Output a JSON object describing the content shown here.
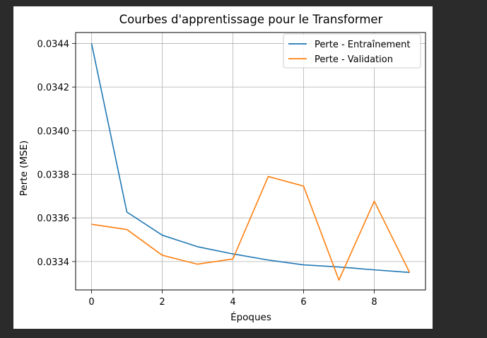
{
  "chart_data": {
    "type": "line",
    "title": "Courbes d'apprentissage pour le Transformer",
    "xlabel": "Époques",
    "ylabel": "Perte (MSE)",
    "x": [
      0,
      1,
      2,
      3,
      4,
      5,
      6,
      7,
      8,
      9
    ],
    "xlim": [
      -0.45,
      9.45
    ],
    "ylim": [
      0.03327,
      0.03445
    ],
    "xticks": [
      0,
      2,
      4,
      6,
      8
    ],
    "yticks": [
      0.0334,
      0.0336,
      0.0338,
      0.034,
      0.0342,
      0.0344
    ],
    "ytick_labels": [
      "0.0334",
      "0.0336",
      "0.0338",
      "0.0340",
      "0.0342",
      "0.0344"
    ],
    "grid": true,
    "legend_position": "top-right",
    "series": [
      {
        "name": "Perte - Entraînement",
        "color": "#1f77b4",
        "values": [
          0.0344,
          0.033627,
          0.033521,
          0.033468,
          0.033435,
          0.033407,
          0.033385,
          0.033375,
          0.033362,
          0.03335
        ]
      },
      {
        "name": "Perte - Validation",
        "color": "#ff7f0e",
        "values": [
          0.033571,
          0.033547,
          0.033429,
          0.033388,
          0.033412,
          0.03379,
          0.033746,
          0.033315,
          0.033677,
          0.03335
        ]
      }
    ]
  }
}
